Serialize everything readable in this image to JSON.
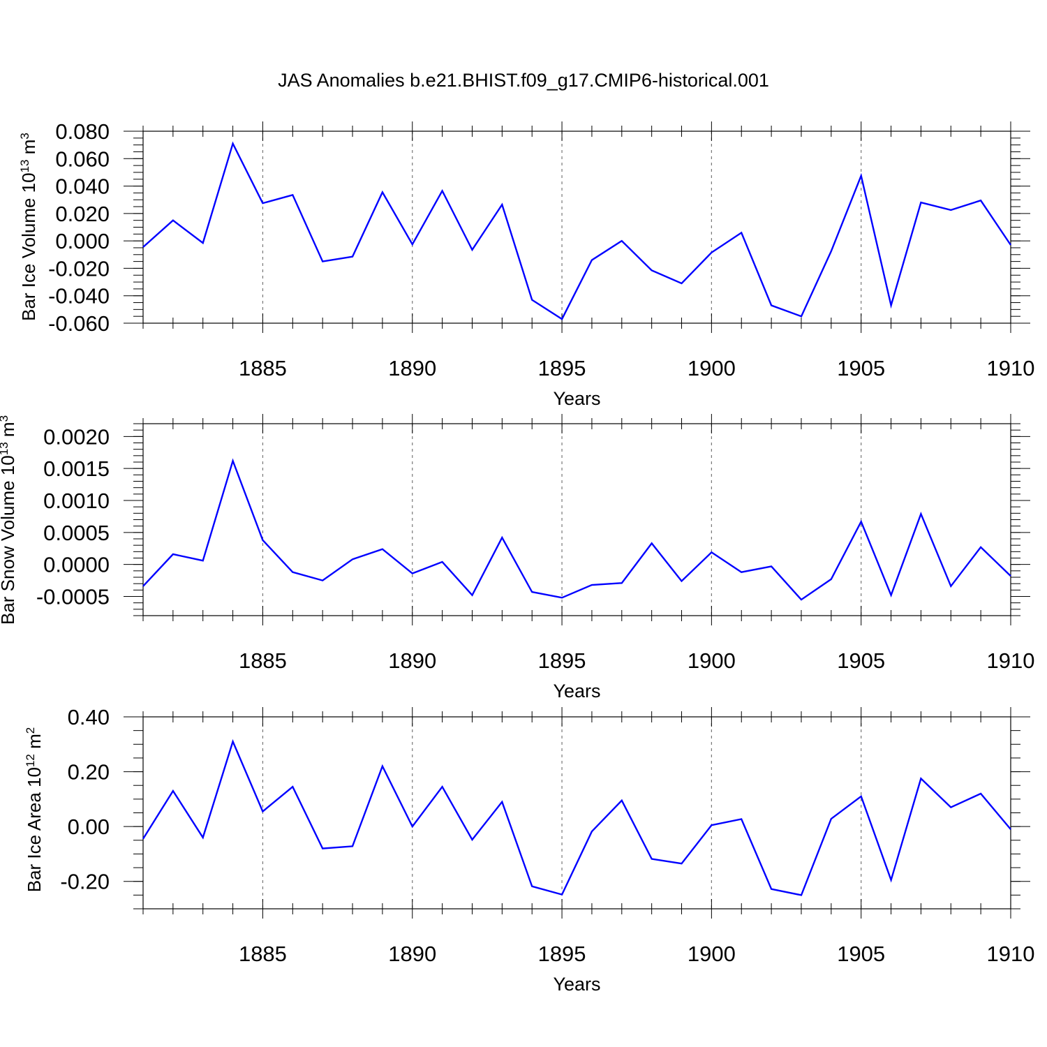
{
  "title": "JAS Anomalies b.e21.BHIST.f09_g17.CMIP6-historical.001",
  "colors": {
    "line": "#0000ff",
    "grid": "#777777"
  },
  "chart_data": [
    {
      "type": "line",
      "ylabel": "Bar Ice Volume 10",
      "ylabel_exp": "13",
      "ylabel_unit": "m",
      "ylabel_unit_exp": "3",
      "xlabel": "Years",
      "xlim": [
        1881,
        1910
      ],
      "ylim": [
        -0.06,
        0.08
      ],
      "xticks": [
        1885,
        1890,
        1895,
        1900,
        1905,
        1910
      ],
      "yticks": [
        -0.06,
        -0.04,
        -0.02,
        0.0,
        0.02,
        0.04,
        0.06,
        0.08
      ],
      "ytick_labels": [
        "-0.060",
        "-0.040",
        "-0.020",
        "0.000",
        "0.020",
        "0.040",
        "0.060",
        "0.080"
      ],
      "yminor": 0.005,
      "x": [
        1881,
        1882,
        1883,
        1884,
        1885,
        1886,
        1887,
        1888,
        1889,
        1890,
        1891,
        1892,
        1893,
        1894,
        1895,
        1896,
        1897,
        1898,
        1899,
        1900,
        1901,
        1902,
        1903,
        1904,
        1905,
        1906,
        1907,
        1908,
        1909,
        1910
      ],
      "values": [
        -0.0045,
        0.015,
        -0.0015,
        0.071,
        0.0275,
        0.0335,
        -0.015,
        -0.0115,
        0.0355,
        -0.0025,
        0.0365,
        -0.0065,
        0.0265,
        -0.043,
        -0.057,
        -0.014,
        0.0,
        -0.0215,
        -0.031,
        -0.0085,
        0.006,
        -0.047,
        -0.055,
        -0.0075,
        0.0475,
        -0.047,
        0.028,
        0.0225,
        0.0295,
        -0.003
      ],
      "grid": "dashed vertical at x ticks"
    },
    {
      "type": "line",
      "ylabel": "Bar Snow Volume 10",
      "ylabel_exp": "13",
      "ylabel_unit": "m",
      "ylabel_unit_exp": "3",
      "xlabel": "Years",
      "xlim": [
        1881,
        1910
      ],
      "ylim": [
        -0.0008,
        0.0022
      ],
      "xticks": [
        1885,
        1890,
        1895,
        1900,
        1905,
        1910
      ],
      "yticks": [
        -0.0005,
        0.0,
        0.0005,
        0.001,
        0.0015,
        0.002
      ],
      "ytick_labels": [
        "-0.0005",
        "0.0000",
        "0.0005",
        "0.0010",
        "0.0015",
        "0.0020"
      ],
      "yminor": 0.0001,
      "x": [
        1881,
        1882,
        1883,
        1884,
        1885,
        1886,
        1887,
        1888,
        1889,
        1890,
        1891,
        1892,
        1893,
        1894,
        1895,
        1896,
        1897,
        1898,
        1899,
        1900,
        1901,
        1902,
        1903,
        1904,
        1905,
        1906,
        1907,
        1908,
        1909,
        1910
      ],
      "values": [
        -0.00034,
        0.00016,
        6e-05,
        0.00162,
        0.00038,
        -0.00012,
        -0.00025,
        8e-05,
        0.00024,
        -0.00014,
        4e-05,
        -0.00048,
        0.00042,
        -0.00043,
        -0.00052,
        -0.00032,
        -0.00029,
        0.00033,
        -0.00026,
        0.00019,
        -0.00012,
        -3e-05,
        -0.00055,
        -0.00023,
        0.00067,
        -0.00048,
        0.00079,
        -0.00034,
        0.00027,
        -0.00018
      ],
      "grid": "dashed vertical at x ticks"
    },
    {
      "type": "line",
      "ylabel": "Bar Ice Area 10",
      "ylabel_exp": "12",
      "ylabel_unit": "m",
      "ylabel_unit_exp": "2",
      "xlabel": "Years",
      "xlim": [
        1881,
        1910
      ],
      "ylim": [
        -0.3,
        0.4
      ],
      "xticks": [
        1885,
        1890,
        1895,
        1900,
        1905,
        1910
      ],
      "yticks": [
        -0.2,
        0.0,
        0.2,
        0.4
      ],
      "ytick_labels": [
        "-0.20",
        "0.00",
        "0.20",
        "0.40"
      ],
      "yminor": 0.05,
      "x": [
        1881,
        1882,
        1883,
        1884,
        1885,
        1886,
        1887,
        1888,
        1889,
        1890,
        1891,
        1892,
        1893,
        1894,
        1895,
        1896,
        1897,
        1898,
        1899,
        1900,
        1901,
        1902,
        1903,
        1904,
        1905,
        1906,
        1907,
        1908,
        1909,
        1910
      ],
      "values": [
        -0.045,
        0.13,
        -0.04,
        0.31,
        0.055,
        0.145,
        -0.08,
        -0.072,
        0.22,
        0.0,
        0.145,
        -0.048,
        0.09,
        -0.218,
        -0.248,
        -0.018,
        0.095,
        -0.118,
        -0.135,
        0.005,
        0.027,
        -0.228,
        -0.25,
        0.028,
        0.11,
        -0.195,
        0.175,
        0.07,
        0.12,
        -0.01
      ],
      "grid": "dashed vertical at x ticks"
    }
  ]
}
